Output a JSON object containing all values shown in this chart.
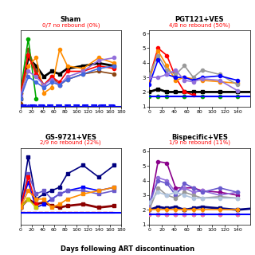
{
  "panels": [
    {
      "title": "Sham",
      "subtitle": "0/7 no rebound (0%)",
      "ylim": [
        1.7,
        4.5
      ],
      "yticks": [],
      "xticks": [
        0,
        20,
        40,
        60,
        80,
        100,
        120,
        140,
        160,
        180
      ],
      "xlim": [
        0,
        180
      ],
      "lines": [
        {
          "x": [
            0,
            14,
            28,
            42,
            56,
            70,
            84,
            112,
            140,
            168
          ],
          "y": [
            2.0,
            3.5,
            3.2,
            2.8,
            3.0,
            2.9,
            3.1,
            3.2,
            3.3,
            3.2
          ],
          "color": "#000000",
          "lw": 2.0,
          "marker": "s",
          "ms": 3,
          "dashed": false
        },
        {
          "x": [
            0,
            14,
            28,
            42,
            56,
            70,
            84,
            112,
            140,
            168
          ],
          "y": [
            1.8,
            3.8,
            3.0,
            2.5,
            2.8,
            2.5,
            2.7,
            2.9,
            3.0,
            2.9
          ],
          "color": "#8B4513",
          "lw": 1.2,
          "marker": "o",
          "ms": 3,
          "dashed": false
        },
        {
          "x": [
            0,
            14,
            28
          ],
          "y": [
            2.2,
            4.2,
            2.0
          ],
          "color": "#00AA00",
          "lw": 1.2,
          "marker": "o",
          "ms": 3,
          "dashed": false
        },
        {
          "x": [
            0,
            14,
            28,
            42,
            56,
            70,
            84,
            112,
            140,
            168
          ],
          "y": [
            2.0,
            3.2,
            3.5,
            2.2,
            2.4,
            3.8,
            3.2,
            3.1,
            3.5,
            3.3
          ],
          "color": "#FF8C00",
          "lw": 1.2,
          "marker": "o",
          "ms": 3,
          "dashed": false
        },
        {
          "x": [
            0,
            14,
            28,
            42,
            56,
            70,
            84,
            112,
            140,
            168
          ],
          "y": [
            2.2,
            3.6,
            2.9,
            2.5,
            2.8,
            2.6,
            3.0,
            3.0,
            3.2,
            3.1
          ],
          "color": "#FF0000",
          "lw": 1.2,
          "marker": "o",
          "ms": 3,
          "dashed": false
        },
        {
          "x": [
            0,
            14,
            28,
            42,
            56,
            70,
            84,
            112,
            140,
            168
          ],
          "y": [
            2.1,
            3.0,
            2.8,
            2.5,
            2.7,
            2.5,
            2.8,
            3.0,
            3.4,
            3.5
          ],
          "color": "#9370DB",
          "lw": 1.2,
          "marker": "o",
          "ms": 3,
          "dashed": false
        },
        {
          "x": [
            0,
            14,
            28,
            42,
            56,
            70,
            84,
            112,
            140,
            168
          ],
          "y": [
            2.0,
            2.8,
            2.6,
            2.4,
            2.6,
            2.5,
            2.7,
            2.9,
            3.1,
            3.2
          ],
          "color": "#4169E1",
          "lw": 1.2,
          "marker": "o",
          "ms": 3,
          "dashed": false
        },
        {
          "x": [
            0,
            14,
            28,
            42,
            56,
            70,
            84,
            112,
            140,
            168
          ],
          "y": [
            1.75,
            1.75,
            1.75,
            1.75,
            1.75,
            1.75,
            1.75,
            1.75,
            1.75,
            1.75
          ],
          "color": "#0000FF",
          "lw": 1.5,
          "marker": ".",
          "ms": 2,
          "dashed": true
        },
        {
          "x": [
            0,
            168
          ],
          "y": [
            1.72,
            1.72
          ],
          "color": "#808080",
          "lw": 1.0,
          "marker": null,
          "ms": 0,
          "dashed": true
        }
      ]
    },
    {
      "title": "PGT121+VES",
      "subtitle": "4/8 no rebound (50%)",
      "ylim": [
        1.0,
        6.2
      ],
      "yticks": [
        1,
        2,
        3,
        4,
        5,
        6
      ],
      "xticks": [
        0,
        20,
        40,
        60,
        80,
        100,
        120,
        140
      ],
      "xlim": [
        0,
        160
      ],
      "lines": [
        {
          "x": [
            0,
            14,
            28,
            42,
            56,
            70,
            84,
            112,
            140,
            168
          ],
          "y": [
            2.0,
            2.2,
            2.0,
            2.0,
            2.0,
            2.0,
            2.0,
            2.0,
            2.0,
            2.0
          ],
          "color": "#000000",
          "lw": 2.0,
          "marker": "s",
          "ms": 3,
          "dashed": false
        },
        {
          "x": [
            0,
            14,
            28,
            42,
            56,
            70
          ],
          "y": [
            3.0,
            5.0,
            4.5,
            3.0,
            2.0,
            1.8
          ],
          "color": "#FF0000",
          "lw": 1.2,
          "marker": "o",
          "ms": 3,
          "dashed": false
        },
        {
          "x": [
            0,
            14,
            28,
            42,
            56,
            70,
            84,
            112,
            140
          ],
          "y": [
            2.8,
            4.8,
            3.8,
            2.8,
            3.0,
            2.9,
            2.8,
            2.7,
            2.6
          ],
          "color": "#FF8C00",
          "lw": 1.2,
          "marker": "o",
          "ms": 3,
          "dashed": false
        },
        {
          "x": [
            0,
            14,
            28,
            42,
            56,
            70,
            84,
            112,
            140
          ],
          "y": [
            3.2,
            4.5,
            3.5,
            3.2,
            3.8,
            3.0,
            3.5,
            3.2,
            2.5
          ],
          "color": "#999999",
          "lw": 1.2,
          "marker": "o",
          "ms": 3,
          "dashed": false
        },
        {
          "x": [
            0,
            14,
            28,
            42,
            56,
            70,
            84,
            112,
            140
          ],
          "y": [
            2.5,
            4.2,
            3.2,
            3.0,
            3.0,
            2.8,
            3.0,
            3.1,
            2.8
          ],
          "color": "#0000FF",
          "lw": 1.2,
          "marker": "o",
          "ms": 3,
          "dashed": false
        },
        {
          "x": [
            0,
            14,
            28,
            42,
            56,
            70,
            84,
            112,
            140
          ],
          "y": [
            3.0,
            3.0,
            3.2,
            3.5,
            2.8,
            2.7,
            2.9,
            2.8,
            2.1
          ],
          "color": "#9370DB",
          "lw": 1.2,
          "marker": "o",
          "ms": 3,
          "dashed": false
        },
        {
          "x": [
            0,
            14,
            28,
            56,
            84,
            112,
            140
          ],
          "y": [
            1.7,
            1.7,
            1.7,
            1.7,
            1.7,
            1.7,
            1.7
          ],
          "color": "#FF69B4",
          "lw": 1.2,
          "marker": "o",
          "ms": 3,
          "dashed": false
        },
        {
          "x": [
            0,
            14,
            28,
            56,
            84,
            112,
            140
          ],
          "y": [
            1.7,
            1.7,
            1.7,
            1.7,
            1.7,
            1.7,
            1.7
          ],
          "color": "#00AA00",
          "lw": 1.2,
          "marker": "o",
          "ms": 3,
          "dashed": false
        },
        {
          "x": [
            0,
            140
          ],
          "y": [
            1.7,
            1.7
          ],
          "color": "#0000FF",
          "lw": 1.5,
          "marker": null,
          "ms": 0,
          "dashed": false
        }
      ]
    },
    {
      "title": "GS-9721+VES",
      "subtitle": "2/9 no rebound (22%)",
      "ylim": [
        1.0,
        5.5
      ],
      "yticks": [],
      "xticks": [
        0,
        20,
        40,
        60,
        80,
        100,
        120,
        140,
        160,
        180
      ],
      "xlim": [
        0,
        180
      ],
      "lines": [
        {
          "x": [
            0,
            14,
            28,
            42,
            56,
            70,
            84,
            112,
            140,
            168
          ],
          "y": [
            2.0,
            2.5,
            2.2,
            2.3,
            2.1,
            2.0,
            2.1,
            2.2,
            2.0,
            2.1
          ],
          "color": "#8B0000",
          "lw": 2.0,
          "marker": "s",
          "ms": 3,
          "dashed": false
        },
        {
          "x": [
            0,
            14,
            28,
            42,
            56,
            70,
            84,
            112,
            140,
            168
          ],
          "y": [
            2.0,
            5.0,
            2.5,
            2.8,
            3.0,
            3.2,
            4.0,
            4.5,
            3.8,
            4.5
          ],
          "color": "#000080",
          "lw": 1.2,
          "marker": "s",
          "ms": 3,
          "dashed": false
        },
        {
          "x": [
            0,
            14,
            28,
            42,
            56,
            70,
            84,
            112,
            140,
            168
          ],
          "y": [
            2.0,
            3.5,
            2.0,
            2.2,
            2.5,
            2.8,
            3.0,
            3.2,
            3.0,
            3.2
          ],
          "color": "#0000FF",
          "lw": 1.2,
          "marker": "s",
          "ms": 3,
          "dashed": false
        },
        {
          "x": [
            0,
            14,
            28,
            42,
            56,
            70,
            84,
            112,
            140,
            168
          ],
          "y": [
            2.0,
            4.0,
            2.8,
            3.0,
            2.5,
            2.8,
            3.0,
            3.0,
            2.8,
            3.0
          ],
          "color": "#6A5ACD",
          "lw": 1.2,
          "marker": "s",
          "ms": 3,
          "dashed": false
        },
        {
          "x": [
            0,
            14,
            28
          ],
          "y": [
            2.0,
            3.8,
            2.2
          ],
          "color": "#FF0000",
          "lw": 1.2,
          "marker": "s",
          "ms": 3,
          "dashed": false
        },
        {
          "x": [
            0,
            14,
            28
          ],
          "y": [
            2.0,
            2.5,
            2.0
          ],
          "color": "#CCCC00",
          "lw": 1.2,
          "marker": "s",
          "ms": 3,
          "dashed": false
        },
        {
          "x": [
            0,
            14,
            28,
            42,
            56,
            70,
            84,
            112,
            140,
            168
          ],
          "y": [
            2.0,
            3.0,
            2.5,
            2.5,
            2.0,
            2.2,
            2.5,
            2.8,
            3.0,
            3.2
          ],
          "color": "#FF8C00",
          "lw": 1.2,
          "marker": "s",
          "ms": 3,
          "dashed": false
        },
        {
          "x": [
            0,
            168
          ],
          "y": [
            1.7,
            1.7
          ],
          "color": "#0000FF",
          "lw": 1.5,
          "marker": null,
          "ms": 0,
          "dashed": false
        },
        {
          "x": [
            0,
            168
          ],
          "y": [
            1.72,
            1.72
          ],
          "color": "#FF0000",
          "lw": 1.0,
          "marker": null,
          "ms": 0,
          "dashed": true
        }
      ]
    },
    {
      "title": "Bispecific+VES",
      "subtitle": "1/9 no rebound (11%)",
      "ylim": [
        1.0,
        6.2
      ],
      "yticks": [
        1,
        2,
        3,
        4,
        5,
        6
      ],
      "xticks": [
        0,
        20,
        40,
        60,
        80,
        100,
        120,
        140
      ],
      "xlim": [
        0,
        160
      ],
      "lines": [
        {
          "x": [
            0,
            14,
            28,
            42,
            56,
            70,
            84,
            112,
            140,
            168
          ],
          "y": [
            2.0,
            2.2,
            2.1,
            2.2,
            2.0,
            2.1,
            2.2,
            2.1,
            2.0,
            2.1
          ],
          "color": "#000080",
          "lw": 2.0,
          "marker": "s",
          "ms": 3,
          "dashed": false
        },
        {
          "x": [
            0,
            14,
            28,
            42,
            56,
            70,
            84,
            112,
            140
          ],
          "y": [
            2.0,
            5.3,
            5.2,
            3.5,
            3.5,
            3.5,
            3.3,
            3.2,
            3.0
          ],
          "color": "#8B008B",
          "lw": 1.2,
          "marker": "o",
          "ms": 3,
          "dashed": false
        },
        {
          "x": [
            0,
            14,
            28,
            42,
            56,
            70,
            84,
            112,
            140
          ],
          "y": [
            2.2,
            4.2,
            4.0,
            3.2,
            3.5,
            3.2,
            3.3,
            3.0,
            3.2
          ],
          "color": "#9370DB",
          "lw": 1.2,
          "marker": "o",
          "ms": 3,
          "dashed": false
        },
        {
          "x": [
            0,
            14,
            28,
            42,
            56,
            70,
            84,
            112,
            140
          ],
          "y": [
            2.5,
            4.0,
            3.8,
            3.0,
            3.8,
            3.5,
            3.2,
            3.5,
            3.2
          ],
          "color": "#6A5ACD",
          "lw": 1.2,
          "marker": "o",
          "ms": 3,
          "dashed": false
        },
        {
          "x": [
            0,
            14,
            28,
            42,
            56,
            70,
            84,
            112,
            140
          ],
          "y": [
            2.0,
            3.5,
            3.0,
            2.8,
            3.2,
            3.0,
            2.8,
            2.9,
            2.8
          ],
          "color": "#999999",
          "lw": 1.2,
          "marker": "o",
          "ms": 3,
          "dashed": false
        },
        {
          "x": [
            0,
            14,
            28,
            42,
            56,
            70,
            84,
            112,
            140
          ],
          "y": [
            2.5,
            3.2,
            3.0,
            3.2,
            3.0,
            2.8,
            2.8,
            2.8,
            2.8
          ],
          "color": "#B0C4DE",
          "lw": 1.2,
          "marker": "o",
          "ms": 3,
          "dashed": false
        },
        {
          "x": [
            0,
            14,
            28,
            42,
            56,
            70,
            84,
            112,
            140
          ],
          "y": [
            2.0,
            2.0,
            2.0,
            2.0,
            2.0,
            2.0,
            2.0,
            2.0,
            2.0
          ],
          "color": "#FF8C00",
          "lw": 1.2,
          "marker": "o",
          "ms": 3,
          "dashed": false
        },
        {
          "x": [
            0,
            14,
            28,
            42,
            56,
            70,
            84,
            112,
            140
          ],
          "y": [
            1.7,
            1.7,
            1.7,
            1.7,
            1.7,
            1.7,
            1.7,
            1.7,
            1.7
          ],
          "color": "#00AA00",
          "lw": 1.2,
          "marker": "o",
          "ms": 3,
          "dashed": false
        },
        {
          "x": [
            0,
            14,
            28,
            42,
            56,
            70,
            84,
            112,
            140
          ],
          "y": [
            1.7,
            1.7,
            1.7,
            1.7,
            1.7,
            1.7,
            1.7,
            1.7,
            1.7
          ],
          "color": "#FF69B4",
          "lw": 1.2,
          "marker": "o",
          "ms": 3,
          "dashed": false
        },
        {
          "x": [
            0,
            140
          ],
          "y": [
            1.7,
            1.7
          ],
          "color": "#0000FF",
          "lw": 1.5,
          "marker": null,
          "ms": 0,
          "dashed": false
        }
      ]
    }
  ],
  "xlabel": "Days following ART discontinuation",
  "figure_bg": "#ffffff",
  "threshold": 1.7
}
